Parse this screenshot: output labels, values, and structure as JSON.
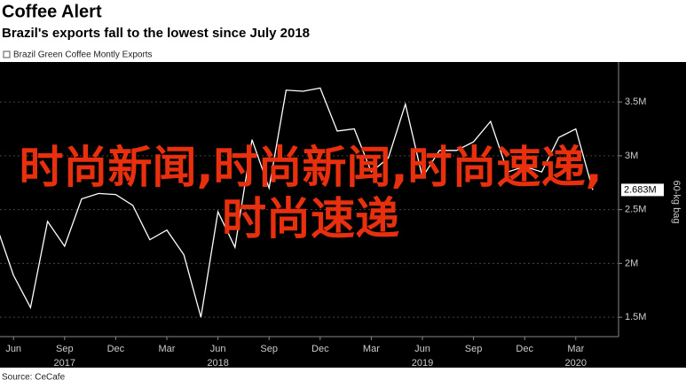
{
  "chart_data": {
    "type": "line",
    "title": "Coffee Alert",
    "subtitle": "Brazil's exports fall to the lowest since July 2018",
    "y_axis_label": "60-kg bag",
    "source": "Source: CeCafe",
    "overlay_text": "时尚新闻,时尚新闻,时尚速递,时尚速递",
    "x": [
      "2017-05",
      "2017-06",
      "2017-07",
      "2017-08",
      "2017-09",
      "2017-10",
      "2017-11",
      "2017-12",
      "2018-01",
      "2018-02",
      "2018-03",
      "2018-04",
      "2018-05",
      "2018-06",
      "2018-07",
      "2018-08",
      "2018-09",
      "2018-10",
      "2018-11",
      "2018-12",
      "2019-01",
      "2019-02",
      "2019-03",
      "2019-04",
      "2019-05",
      "2019-06",
      "2019-07",
      "2019-08",
      "2019-09",
      "2019-10",
      "2019-11",
      "2019-12",
      "2020-01",
      "2020-02",
      "2020-03",
      "2020-04"
    ],
    "series": [
      {
        "name": "Brazil Green Coffee Montly Exports",
        "color": "#ffffff",
        "values": [
          2.35,
          1.89,
          1.59,
          2.39,
          2.16,
          2.6,
          2.65,
          2.64,
          2.54,
          2.22,
          2.31,
          2.08,
          1.5,
          2.48,
          2.15,
          3.15,
          2.7,
          3.61,
          3.6,
          3.63,
          3.23,
          3.25,
          2.85,
          2.98,
          3.48,
          2.8,
          3.05,
          3.05,
          3.13,
          3.32,
          2.85,
          2.9,
          2.85,
          3.17,
          3.25,
          2.683
        ],
        "last_value_label": "2.683M"
      }
    ],
    "ylim": [
      1.32,
      3.855
    ],
    "yticks": [
      {
        "value": 1.5,
        "label": "1.5M"
      },
      {
        "value": 2,
        "label": "2M"
      },
      {
        "value": 2.5,
        "label": "2.5M"
      },
      {
        "value": 3,
        "label": "3M"
      },
      {
        "value": 3.5,
        "label": "3.5M"
      }
    ],
    "xticks": [
      {
        "value": "2017-06",
        "label": "Jun"
      },
      {
        "value": "2017-09",
        "label": "Sep"
      },
      {
        "value": "2017-12",
        "label": "Dec"
      },
      {
        "value": "2018-03",
        "label": "Mar"
      },
      {
        "value": "2018-06",
        "label": "Jun"
      },
      {
        "value": "2018-09",
        "label": "Sep"
      },
      {
        "value": "2018-12",
        "label": "Dec"
      },
      {
        "value": "2019-03",
        "label": "Mar"
      },
      {
        "value": "2019-06",
        "label": "Jun"
      },
      {
        "value": "2019-09",
        "label": "Sep"
      },
      {
        "value": "2019-12",
        "label": "Dec"
      },
      {
        "value": "2020-03",
        "label": "Mar"
      }
    ],
    "year_ticks": [
      {
        "value": "2017-09",
        "label": "2017"
      },
      {
        "value": "2018-06",
        "label": "2018"
      },
      {
        "value": "2019-06",
        "label": "2019"
      },
      {
        "value": "2020-03",
        "label": "2020"
      }
    ],
    "grid": true,
    "legend": "top-left"
  }
}
